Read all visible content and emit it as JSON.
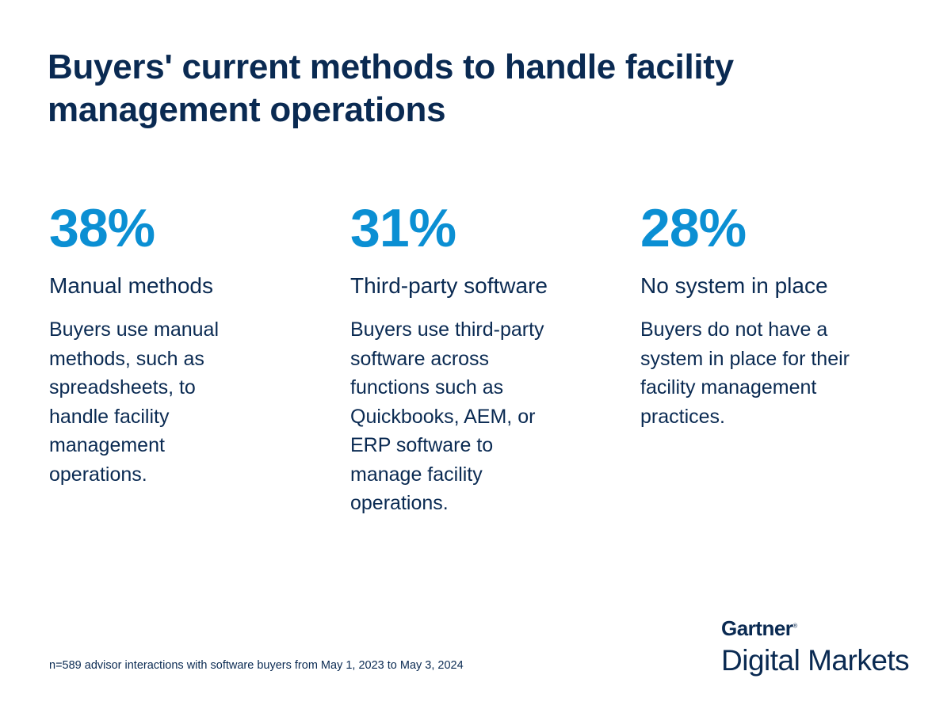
{
  "title": "Buyers' current methods to handle facility management operations",
  "stats": [
    {
      "percent": "38%",
      "heading": "Manual methods",
      "description": "Buyers use manual methods, such as spreadsheets, to handle facility management operations."
    },
    {
      "percent": "31%",
      "heading": "Third-party software",
      "description": "Buyers use third-party software across functions such as Quickbooks, AEM, or ERP software to manage facility operations."
    },
    {
      "percent": "28%",
      "heading": "No system in place",
      "description": "Buyers do not have a system in place for their facility management practices."
    }
  ],
  "footnote": "n=589 advisor interactions with software buyers from May 1, 2023 to May 3, 2024",
  "logo": {
    "brand": "Gartner",
    "registered": "®",
    "product": "Digital Markets"
  },
  "colors": {
    "navy": "#0a2a52",
    "accent": "#0b8fd3"
  }
}
